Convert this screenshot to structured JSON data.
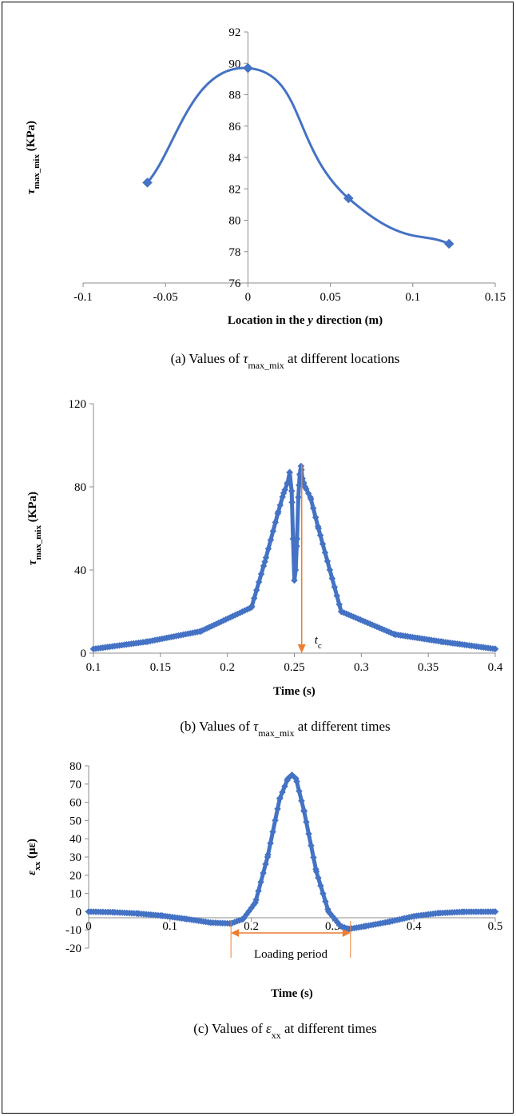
{
  "colors": {
    "series": "#4472C4",
    "annotation": "#ED7D31",
    "axis": "#8C8C8C"
  },
  "chart_data": [
    {
      "type": "line",
      "caption": {
        "prefix": "(a) Values of ",
        "symbol": "τ",
        "sub": "max_mix",
        "suffix": " at different locations"
      },
      "ylabel": {
        "symbol": "τ",
        "sub": "max_mix",
        "unit": " (KPa)"
      },
      "xlabel": {
        "pre": "Location in the ",
        "italic": "y",
        "post": " direction (m)"
      },
      "xticks": [
        "-0.1",
        "-0.05",
        "0",
        "0.05",
        "0.1",
        "0.15"
      ],
      "yticks": [
        "76",
        "78",
        "80",
        "82",
        "84",
        "86",
        "88",
        "90",
        "92"
      ],
      "xlim": [
        -0.1,
        0.15
      ],
      "ylim": [
        76,
        92
      ],
      "marker": "diamond",
      "smooth": true,
      "x": [
        -0.061,
        0,
        0.061,
        0.122
      ],
      "y": [
        82.4,
        89.7,
        81.4,
        78.5
      ]
    },
    {
      "type": "line",
      "caption": {
        "prefix": "(b) Values of ",
        "symbol": "τ",
        "sub": "max_mix",
        "suffix": " at different times"
      },
      "ylabel": {
        "symbol": "τ",
        "sub": "max_mix",
        "unit": " (KPa)"
      },
      "xlabel": {
        "pre": "Time (s)",
        "italic": "",
        "post": ""
      },
      "xticks": [
        "0.1",
        "0.15",
        "0.2",
        "0.25",
        "0.3",
        "0.35",
        "0.4"
      ],
      "yticks": [
        "0",
        "40",
        "80",
        "120"
      ],
      "xlim": [
        0.1,
        0.4
      ],
      "ylim": [
        0,
        120
      ],
      "marker": "diamond",
      "dense_markers": true,
      "x": [
        0.1,
        0.14,
        0.18,
        0.218,
        0.228,
        0.238,
        0.242,
        0.245,
        0.2465,
        0.248,
        0.249,
        0.25,
        0.251,
        0.252,
        0.253,
        0.254,
        0.255,
        0.256,
        0.258,
        0.262,
        0.268,
        0.285,
        0.325,
        0.36,
        0.4
      ],
      "y": [
        2,
        5.5,
        10.5,
        22,
        44,
        68,
        77,
        82,
        87,
        78,
        55,
        35,
        40,
        55,
        75,
        86,
        90,
        84,
        80,
        75,
        60,
        20,
        9,
        5.5,
        2
      ],
      "annotation": {
        "label": "t",
        "sub": "c",
        "x": 0.2555
      }
    },
    {
      "type": "line",
      "caption": {
        "prefix": "(c) Values of ",
        "symbol": "ε",
        "sub": "xx",
        "suffix": " at different times"
      },
      "ylabel": {
        "symbol": "ε",
        "sub": "xx",
        "unit": " (με)"
      },
      "xlabel": {
        "pre": "Time (s)",
        "italic": "",
        "post": ""
      },
      "xticks": [
        "0",
        "0.1",
        "0.2",
        "0.3",
        "0.4",
        "0.5"
      ],
      "yticks": [
        "-20",
        "-10",
        "0",
        "10",
        "20",
        "30",
        "40",
        "50",
        "60",
        "70",
        "80"
      ],
      "xlim": [
        0,
        0.5
      ],
      "ylim": [
        -20,
        80
      ],
      "marker": "diamond",
      "dense_markers": true,
      "x": [
        0,
        0.03,
        0.06,
        0.09,
        0.12,
        0.15,
        0.175,
        0.19,
        0.205,
        0.22,
        0.235,
        0.245,
        0.25,
        0.255,
        0.265,
        0.28,
        0.295,
        0.31,
        0.32,
        0.34,
        0.37,
        0.4,
        0.43,
        0.46,
        0.5
      ],
      "y": [
        0,
        -0.3,
        -1,
        -2.2,
        -4,
        -6,
        -6.5,
        -4,
        5,
        30,
        62,
        73,
        75,
        73,
        55,
        22,
        0,
        -8,
        -9.5,
        -8,
        -5.5,
        -2.5,
        -0.8,
        -0.1,
        0
      ],
      "period": {
        "label": "Loading period",
        "x1": 0.175,
        "x2": 0.322
      }
    }
  ]
}
